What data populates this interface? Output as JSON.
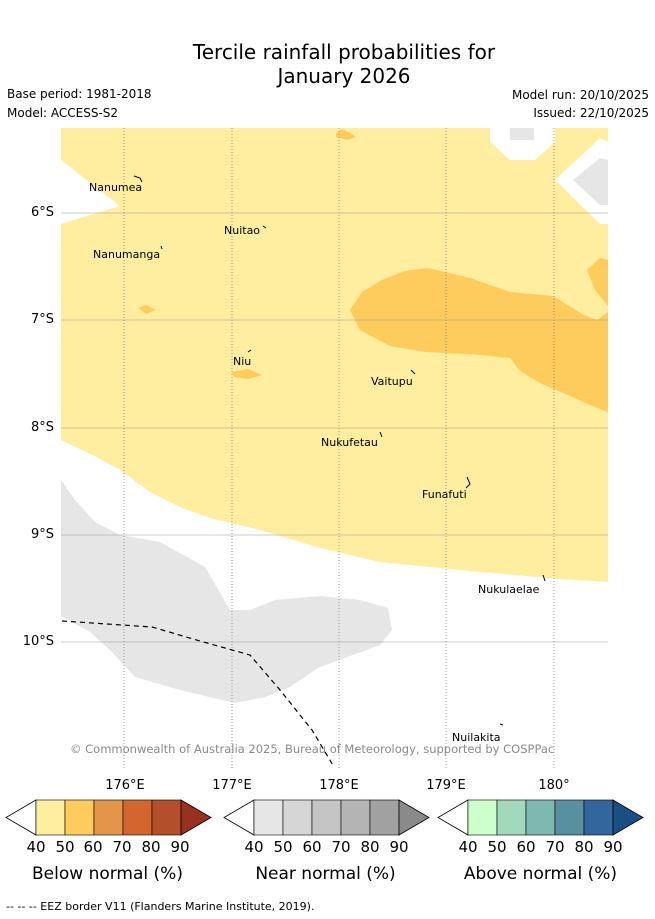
{
  "title": {
    "line1": "Tercile rainfall probabilities for",
    "line2": "January 2026"
  },
  "meta": {
    "base_period": "Base period: 1981-2018",
    "model": "Model: ACCESS-S2",
    "model_run": "Model run: 20/10/2025",
    "issued": "Issued: 22/10/2025"
  },
  "axes": {
    "latitudes": [
      "6°S",
      "7°S",
      "8°S",
      "9°S",
      "10°S"
    ],
    "longitudes": [
      "176°E",
      "177°E",
      "178°E",
      "179°E",
      "180°"
    ]
  },
  "places": [
    "Nanumea",
    "Nuitao",
    "Nanumanga",
    "Niu",
    "Vaitupu",
    "Nukufetau",
    "Funafuti",
    "Nukulaelae",
    "Nuilakita"
  ],
  "copyright": "© Commonwealth of Australia 2025, Bureau of Meteorology, supported by COSPPac",
  "colorbars": {
    "below": {
      "title": "Below normal (%)",
      "ticks": [
        "40",
        "50",
        "60",
        "70",
        "80",
        "90"
      ],
      "colors": [
        "#ffeda0",
        "#fecc5c",
        "#e3964a",
        "#d2662e",
        "#b34f2a",
        "#99311f"
      ]
    },
    "near": {
      "title": "Near normal (%)",
      "ticks": [
        "40",
        "50",
        "60",
        "70",
        "80",
        "90"
      ],
      "colors": [
        "#e6e6e6",
        "#d6d6d6",
        "#c5c5c5",
        "#b4b4b4",
        "#a1a1a1",
        "#8a8a8a"
      ]
    },
    "above": {
      "title": "Above normal (%)",
      "ticks": [
        "40",
        "50",
        "60",
        "70",
        "80",
        "90"
      ],
      "colors": [
        "#ccffcc",
        "#a2d9bc",
        "#7fb8b1",
        "#5890a0",
        "#33669c",
        "#1a4f85"
      ]
    }
  },
  "legend": {
    "eez": "--  --  -- EEZ border V11 (Flanders Marine Institute, 2019)."
  }
}
